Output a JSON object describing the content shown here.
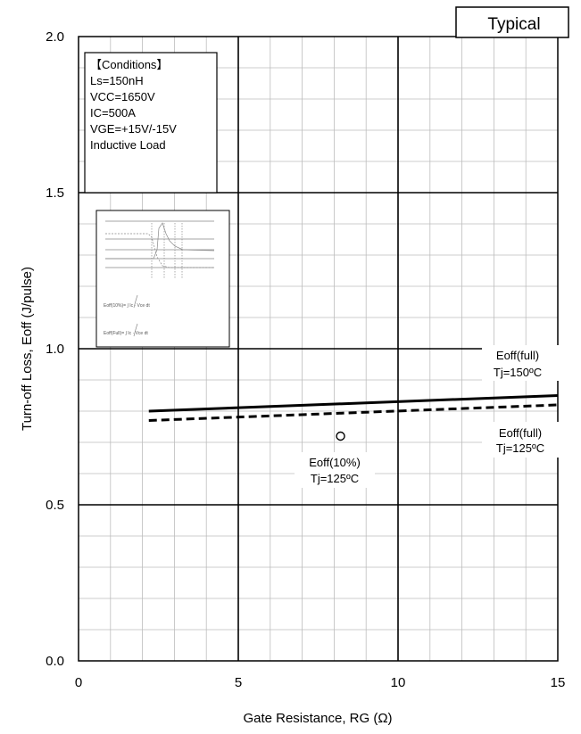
{
  "chart_data": {
    "type": "line",
    "badge": "Typical",
    "xlabel": "Gate Resistance, RG (Ω)",
    "ylabel": "Turn-off Loss, Eoff (J/pulse)",
    "xlim": [
      0,
      15
    ],
    "ylim": [
      0,
      2.0
    ],
    "x_ticks": [
      0,
      5,
      10,
      15
    ],
    "y_ticks": [
      0.0,
      0.5,
      1.0,
      1.5,
      2.0
    ],
    "x_tick_labels": [
      "0",
      "5",
      "10",
      "15"
    ],
    "y_tick_labels": [
      "0.0",
      "0.5",
      "1.0",
      "1.5",
      "2.0"
    ],
    "grid": true,
    "conditions": [
      "【Conditions】",
      "Ls=150nH",
      "VCC=1650V",
      "IC=500A",
      "VGE=+15V/-15V",
      "Inductive Load"
    ],
    "series": [
      {
        "name_lines": [
          "Eoff(full)",
          "Tj=150ºC"
        ],
        "style": "solid",
        "x": [
          2.2,
          15
        ],
        "y": [
          0.8,
          0.85
        ]
      },
      {
        "name_lines": [
          "Eoff(full)",
          "Tj=125ºC"
        ],
        "style": "dashed",
        "x": [
          2.2,
          15
        ],
        "y": [
          0.77,
          0.82
        ]
      },
      {
        "name_lines": [
          "Eoff(10%)",
          "Tj=125ºC"
        ],
        "style": "marker",
        "x": [
          8.2
        ],
        "y": [
          0.72
        ]
      }
    ],
    "inset_formulas": [
      "Eoff(10%)= ∫ Ic · Vce dt",
      "Eoff(Full)= ∫ Ic · Vce dt"
    ]
  }
}
